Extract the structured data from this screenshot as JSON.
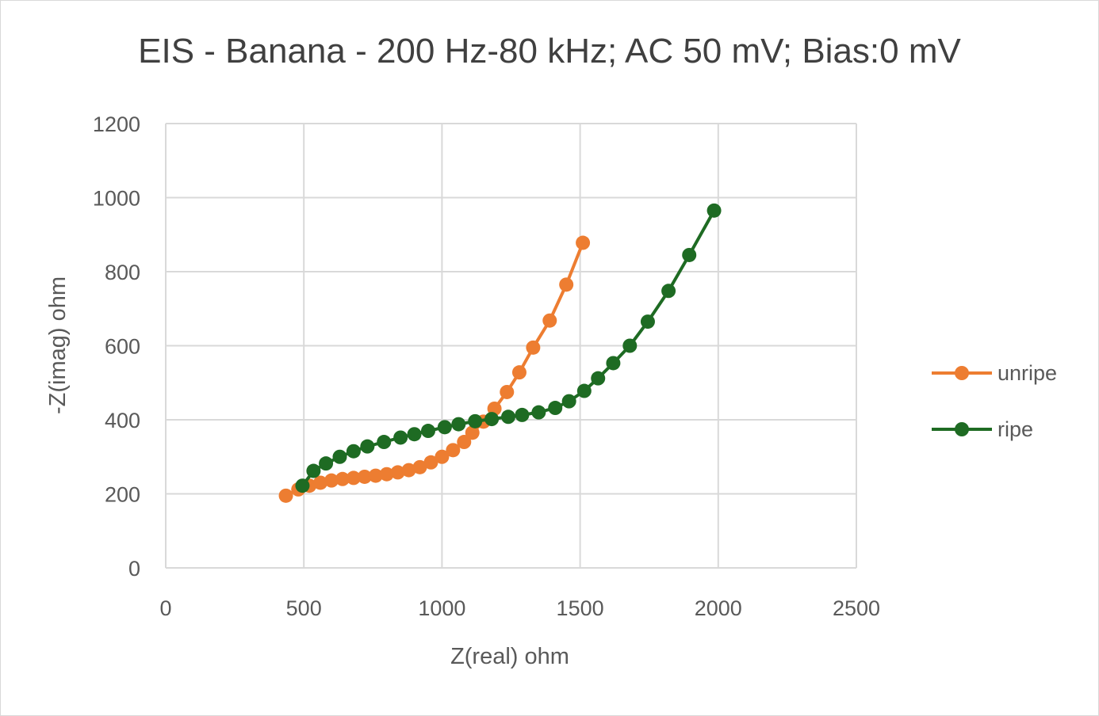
{
  "chart_data": {
    "type": "scatter",
    "title": "EIS - Banana - 200 Hz-80 kHz; AC 50 mV; Bias:0 mV",
    "xlabel": "Z(real) ohm",
    "ylabel": "-Z(imag) ohm",
    "xlim": [
      0,
      2500
    ],
    "ylim": [
      0,
      1200
    ],
    "xticks": [
      "0",
      "500",
      "1000",
      "1500",
      "2000",
      "2500"
    ],
    "yticks": [
      "0",
      "200",
      "400",
      "600",
      "800",
      "1000",
      "1200"
    ],
    "grid": true,
    "legend_position": "right",
    "series": [
      {
        "name": "unripe",
        "color": "#ED7D31",
        "x": [
          435,
          480,
          520,
          560,
          600,
          640,
          680,
          720,
          760,
          800,
          840,
          880,
          920,
          960,
          1000,
          1040,
          1080,
          1110,
          1150,
          1190,
          1235,
          1280,
          1330,
          1390,
          1450,
          1510
        ],
        "y": [
          195,
          212,
          222,
          230,
          236,
          240,
          243,
          246,
          249,
          253,
          258,
          264,
          272,
          285,
          300,
          318,
          340,
          365,
          395,
          430,
          475,
          528,
          595,
          668,
          765,
          878
        ]
      },
      {
        "name": "ripe",
        "color": "#1E6B23",
        "x": [
          495,
          535,
          580,
          630,
          680,
          730,
          790,
          850,
          900,
          950,
          1010,
          1060,
          1120,
          1180,
          1240,
          1290,
          1350,
          1410,
          1460,
          1515,
          1565,
          1620,
          1680,
          1745,
          1820,
          1895,
          1985
        ],
        "y": [
          222,
          262,
          282,
          300,
          315,
          328,
          340,
          352,
          361,
          370,
          380,
          388,
          396,
          402,
          408,
          413,
          420,
          432,
          450,
          478,
          512,
          553,
          600,
          665,
          748,
          845,
          965
        ]
      }
    ]
  }
}
